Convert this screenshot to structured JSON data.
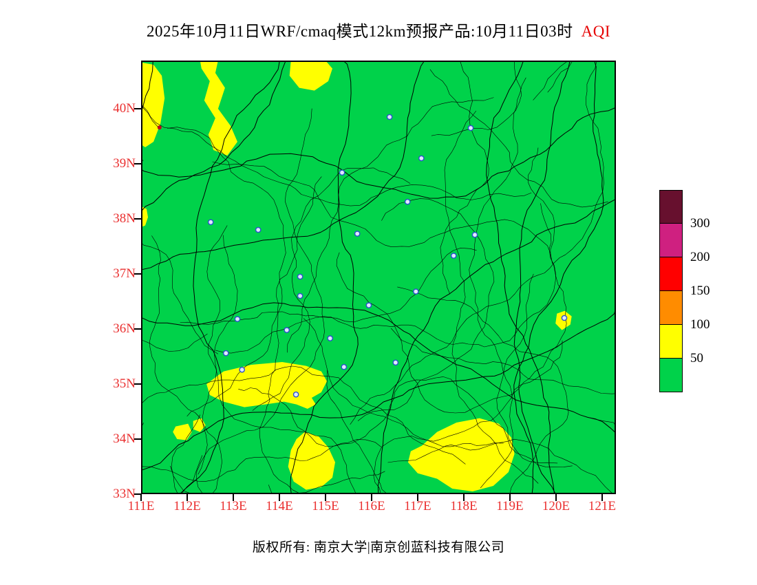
{
  "title": {
    "main": "2025年10月11日WRF/cmaq模式12km预报产品:10月11日03时",
    "highlight": "AQI"
  },
  "footer": {
    "text": "版权所有: 南京大学|南京创蓝科技有限公司"
  },
  "colors": {
    "axis_label": "#ea3030",
    "title_highlight": "#e60000",
    "map_border": "#000000",
    "marker_stroke": "#2b50cc",
    "marker_fill": "#dfe9ff"
  },
  "legend": {
    "labels": [
      "300",
      "200",
      "150",
      "100",
      "50"
    ],
    "colors": [
      "#67102e",
      "#cf2080",
      "#ff0000",
      "#ff8c00",
      "#ffff00",
      "#00d24a"
    ]
  },
  "chart_data": {
    "type": "heatmap",
    "title": "2025年10月11日WRF/cmaq模式12km预报产品:10月11日03时 AQI",
    "variable": "AQI",
    "legend_thresholds": [
      50,
      100,
      150,
      200,
      300
    ],
    "extent": {
      "lon_min": 111,
      "lon_max": 121.3,
      "lat_min": 33,
      "lat_max": 40.875
    },
    "base_color": "#00d24a",
    "patch_color": "#ffff00",
    "lat_ticks": [
      {
        "value": 40,
        "label": "40N"
      },
      {
        "value": 39,
        "label": "39N"
      },
      {
        "value": 38,
        "label": "38N"
      },
      {
        "value": 37,
        "label": "37N"
      },
      {
        "value": 36,
        "label": "36N"
      },
      {
        "value": 35,
        "label": "35N"
      },
      {
        "value": 34,
        "label": "34N"
      },
      {
        "value": 33,
        "label": "33N"
      }
    ],
    "lon_ticks": [
      {
        "value": 111,
        "label": "111E"
      },
      {
        "value": 112,
        "label": "112E"
      },
      {
        "value": 113,
        "label": "113E"
      },
      {
        "value": 114,
        "label": "114E"
      },
      {
        "value": 115,
        "label": "115E"
      },
      {
        "value": 116,
        "label": "116E"
      },
      {
        "value": 117,
        "label": "117E"
      },
      {
        "value": 118,
        "label": "118E"
      },
      {
        "value": 119,
        "label": "119E"
      },
      {
        "value": 120,
        "label": "120E"
      },
      {
        "value": 121,
        "label": "121E"
      }
    ],
    "patches": [
      {
        "color": "#ffff00",
        "points": [
          [
            111.0,
            40.84
          ],
          [
            111.27,
            40.8
          ],
          [
            111.45,
            40.6
          ],
          [
            111.51,
            40.19
          ],
          [
            111.42,
            39.73
          ],
          [
            111.27,
            39.4
          ],
          [
            111.09,
            39.3
          ],
          [
            111.0,
            39.35
          ]
        ]
      },
      {
        "color": "#ffff00",
        "points": [
          [
            112.28,
            40.875
          ],
          [
            112.67,
            40.875
          ],
          [
            112.61,
            40.65
          ],
          [
            112.82,
            40.38
          ],
          [
            112.67,
            40.0
          ],
          [
            112.94,
            39.69
          ],
          [
            113.09,
            39.4
          ],
          [
            112.87,
            39.15
          ],
          [
            112.57,
            39.25
          ],
          [
            112.46,
            39.53
          ],
          [
            112.61,
            39.83
          ],
          [
            112.37,
            40.15
          ],
          [
            112.49,
            40.5
          ],
          [
            112.31,
            40.73
          ]
        ]
      },
      {
        "color": "#ffff00",
        "points": [
          [
            114.25,
            40.875
          ],
          [
            115.0,
            40.875
          ],
          [
            115.15,
            40.73
          ],
          [
            115.06,
            40.5
          ],
          [
            114.76,
            40.33
          ],
          [
            114.43,
            40.38
          ],
          [
            114.22,
            40.6
          ]
        ]
      },
      {
        "color": "#ffff00",
        "points": [
          [
            111.0,
            38.23
          ],
          [
            111.12,
            38.18
          ],
          [
            111.15,
            38.03
          ],
          [
            111.09,
            37.88
          ],
          [
            111.0,
            37.85
          ]
        ]
      },
      {
        "color": "#ffff00",
        "points": [
          [
            112.42,
            35.0
          ],
          [
            112.79,
            35.23
          ],
          [
            113.39,
            35.35
          ],
          [
            114.06,
            35.4
          ],
          [
            114.58,
            35.33
          ],
          [
            114.91,
            35.23
          ],
          [
            115.03,
            35.05
          ],
          [
            114.91,
            34.85
          ],
          [
            114.7,
            34.75
          ],
          [
            114.79,
            34.63
          ],
          [
            114.61,
            34.55
          ],
          [
            114.37,
            34.63
          ],
          [
            114.1,
            34.68
          ],
          [
            113.69,
            34.63
          ],
          [
            113.24,
            34.58
          ],
          [
            112.79,
            34.68
          ],
          [
            112.49,
            34.8
          ]
        ]
      },
      {
        "color": "#ffff00",
        "points": [
          [
            111.75,
            34.23
          ],
          [
            112.02,
            34.28
          ],
          [
            112.1,
            34.13
          ],
          [
            111.99,
            33.98
          ],
          [
            111.78,
            34.0
          ],
          [
            111.69,
            34.13
          ]
        ]
      },
      {
        "color": "#ffff00",
        "points": [
          [
            112.13,
            34.33
          ],
          [
            112.31,
            34.38
          ],
          [
            112.4,
            34.25
          ],
          [
            112.28,
            34.13
          ],
          [
            112.13,
            34.18
          ]
        ]
      },
      {
        "color": "#ffff00",
        "points": [
          [
            114.55,
            34.13
          ],
          [
            114.85,
            34.05
          ],
          [
            115.06,
            33.85
          ],
          [
            115.21,
            33.58
          ],
          [
            115.15,
            33.3
          ],
          [
            114.91,
            33.13
          ],
          [
            114.58,
            33.08
          ],
          [
            114.31,
            33.23
          ],
          [
            114.19,
            33.5
          ],
          [
            114.25,
            33.8
          ],
          [
            114.37,
            34.0
          ]
        ]
      },
      {
        "color": "#ffff00",
        "points": [
          [
            117.09,
            33.88
          ],
          [
            117.42,
            34.13
          ],
          [
            117.84,
            34.3
          ],
          [
            118.34,
            34.38
          ],
          [
            118.76,
            34.28
          ],
          [
            119.03,
            34.03
          ],
          [
            119.1,
            33.73
          ],
          [
            118.97,
            33.4
          ],
          [
            118.64,
            33.15
          ],
          [
            118.19,
            33.05
          ],
          [
            117.75,
            33.1
          ],
          [
            117.42,
            33.28
          ],
          [
            117.0,
            33.38
          ],
          [
            116.79,
            33.58
          ],
          [
            116.85,
            33.78
          ]
        ]
      },
      {
        "color": "#ffff00",
        "points": [
          [
            120.02,
            36.28
          ],
          [
            120.19,
            36.33
          ],
          [
            120.34,
            36.23
          ],
          [
            120.31,
            36.08
          ],
          [
            120.13,
            35.98
          ],
          [
            119.99,
            36.1
          ]
        ]
      }
    ],
    "spots": [
      {
        "lon": 111.4,
        "lat": 39.66,
        "r": 3,
        "color": "#c40018"
      }
    ],
    "markers": [
      {
        "lon": 116.39,
        "lat": 39.85
      },
      {
        "lon": 118.15,
        "lat": 39.65
      },
      {
        "lon": 117.08,
        "lat": 39.1
      },
      {
        "lon": 115.36,
        "lat": 38.84
      },
      {
        "lon": 116.78,
        "lat": 38.31
      },
      {
        "lon": 112.51,
        "lat": 37.94
      },
      {
        "lon": 113.54,
        "lat": 37.8
      },
      {
        "lon": 115.69,
        "lat": 37.73
      },
      {
        "lon": 117.78,
        "lat": 37.33
      },
      {
        "lon": 118.24,
        "lat": 37.71
      },
      {
        "lon": 114.45,
        "lat": 36.95
      },
      {
        "lon": 114.45,
        "lat": 36.6
      },
      {
        "lon": 116.96,
        "lat": 36.68
      },
      {
        "lon": 115.94,
        "lat": 36.43
      },
      {
        "lon": 113.09,
        "lat": 36.18
      },
      {
        "lon": 114.16,
        "lat": 35.98
      },
      {
        "lon": 115.1,
        "lat": 35.83
      },
      {
        "lon": 112.84,
        "lat": 35.56
      },
      {
        "lon": 113.19,
        "lat": 35.26
      },
      {
        "lon": 115.4,
        "lat": 35.31
      },
      {
        "lon": 116.52,
        "lat": 35.39
      },
      {
        "lon": 114.36,
        "lat": 34.81
      },
      {
        "lon": 120.18,
        "lat": 36.2
      }
    ]
  }
}
